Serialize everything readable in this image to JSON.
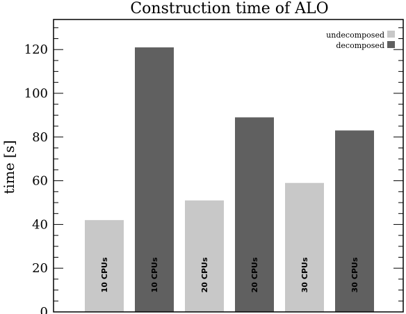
{
  "chart_data": {
    "type": "bar",
    "title": "Construction time of ALO",
    "xlabel": "",
    "ylabel": "time [s]",
    "ylim": [
      0,
      133
    ],
    "yticks": [
      0,
      20,
      40,
      60,
      80,
      100,
      120
    ],
    "grid": false,
    "legend_position": "top-right",
    "legend": [
      {
        "name": "undecomposed",
        "color": "#c8c8c8"
      },
      {
        "name": "decomposed",
        "color": "#606060"
      }
    ],
    "bars": [
      {
        "label": "10 CPUs",
        "series": "undecomposed",
        "value": 42
      },
      {
        "label": "10 CPUs",
        "series": "decomposed",
        "value": 121
      },
      {
        "label": "20 CPUs",
        "series": "undecomposed",
        "value": 51
      },
      {
        "label": "20 CPUs",
        "series": "decomposed",
        "value": 89
      },
      {
        "label": "30 CPUs",
        "series": "undecomposed",
        "value": 59
      },
      {
        "label": "30 CPUs",
        "series": "decomposed",
        "value": 83
      }
    ]
  }
}
